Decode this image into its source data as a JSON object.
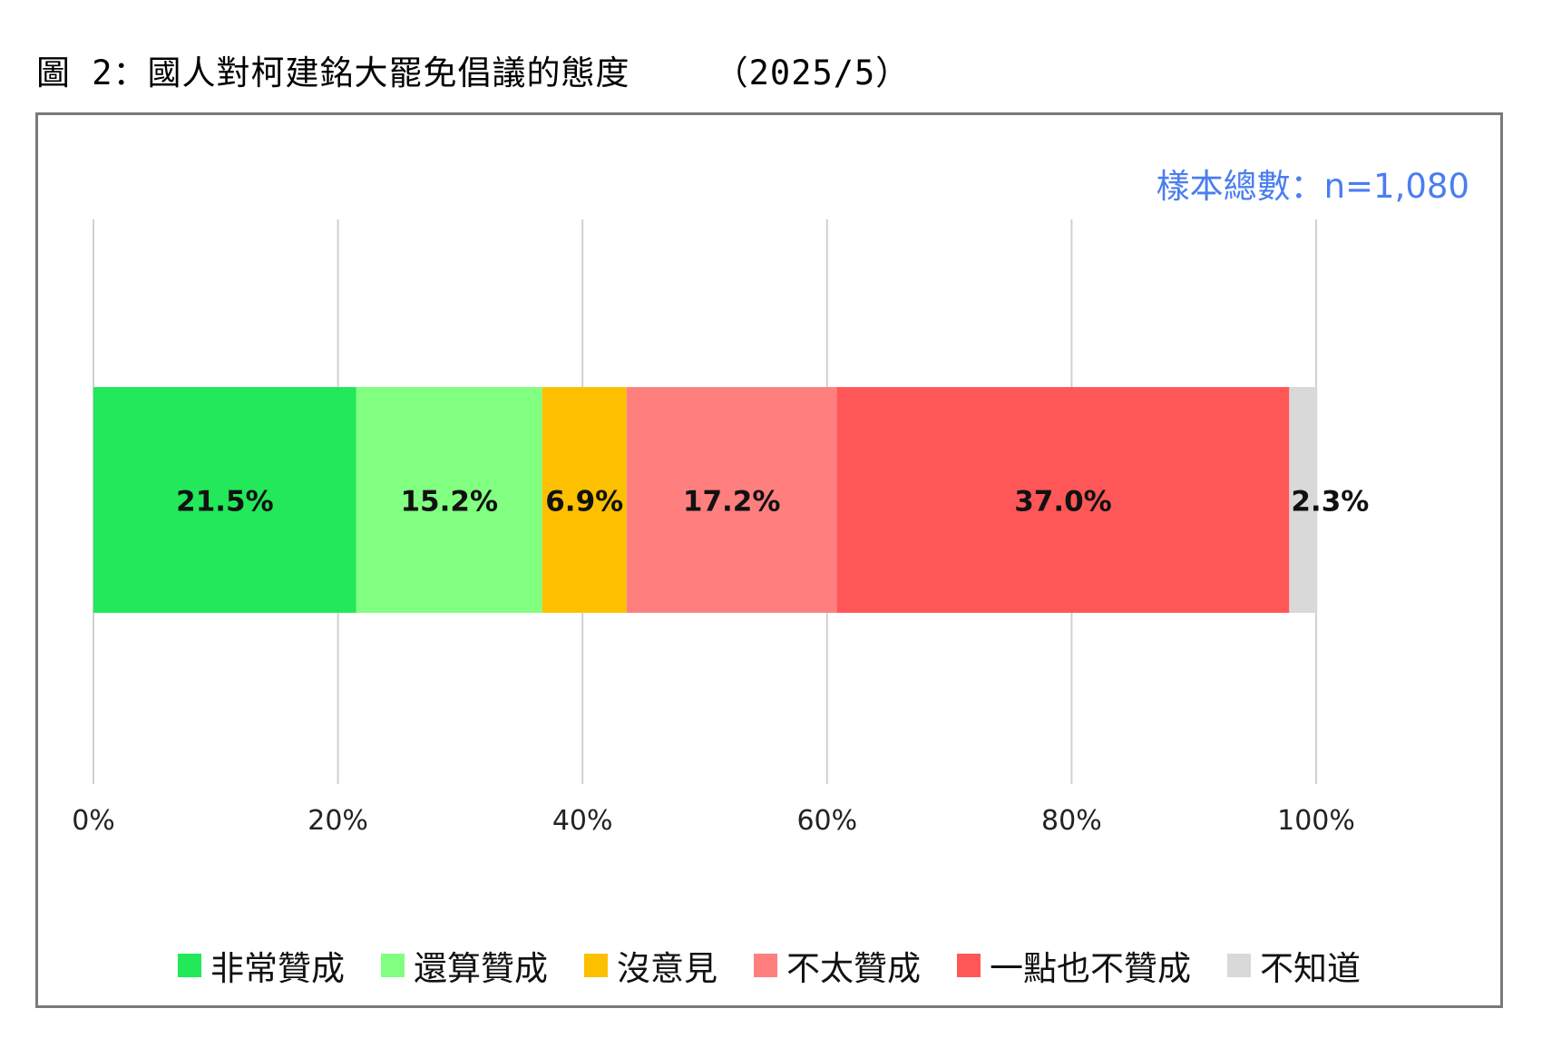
{
  "figure_title": "圖 2：國人對柯建銘大罷免倡議的態度    （2025/5）",
  "sample_note": "樣本總數：n=1,080",
  "chart_data": {
    "type": "bar",
    "orientation": "horizontal",
    "stacked": true,
    "xlim": [
      0,
      100
    ],
    "x_ticks": [
      "0%",
      "20%",
      "40%",
      "60%",
      "80%",
      "100%"
    ],
    "x_tick_values": [
      0,
      20,
      40,
      60,
      80,
      100
    ],
    "grid": "vertical",
    "legend_position": "bottom",
    "series": [
      {
        "name": "非常贊成",
        "value": 21.5,
        "label": "21.5%",
        "color": "#22e85a"
      },
      {
        "name": "還算贊成",
        "value": 15.2,
        "label": "15.2%",
        "color": "#80ff80"
      },
      {
        "name": "沒意見",
        "value": 6.9,
        "label": "6.9%",
        "color": "#fcc000"
      },
      {
        "name": "不太贊成",
        "value": 17.2,
        "label": "17.2%",
        "color": "#ff7f7f"
      },
      {
        "name": "一點也不贊成",
        "value": 37.0,
        "label": "37.0%",
        "color": "#ff5757"
      },
      {
        "name": "不知道",
        "value": 2.3,
        "label": "2.3%",
        "color": "#d9d9d9"
      }
    ]
  }
}
